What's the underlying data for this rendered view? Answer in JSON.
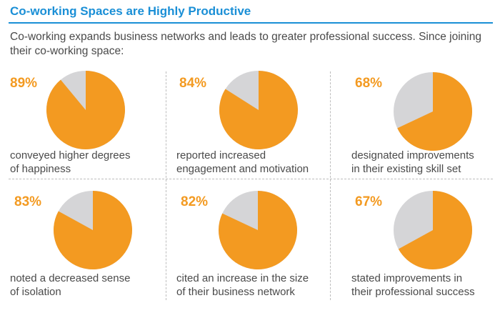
{
  "title": "Co-working Spaces are Highly Productive",
  "subtitle": "Co-working expands business networks and leads to greater professional success. Since joining their co-working space:",
  "colors": {
    "accent": "#f39a21",
    "rest": "#d5d5d7",
    "title": "#1a8fd6",
    "divider": "#bdbdbd"
  },
  "chart_data": [
    {
      "type": "pie",
      "value": 89,
      "label": "89%",
      "caption_lines": [
        "conveyed higher degrees",
        "of happiness"
      ]
    },
    {
      "type": "pie",
      "value": 84,
      "label": "84%",
      "caption_lines": [
        "reported increased",
        "engagement and motivation"
      ]
    },
    {
      "type": "pie",
      "value": 68,
      "label": "68%",
      "caption_lines": [
        "designated improvements",
        "in their existing skill set"
      ]
    },
    {
      "type": "pie",
      "value": 83,
      "label": "83%",
      "caption_lines": [
        "noted a decreased sense",
        "of isolation"
      ]
    },
    {
      "type": "pie",
      "value": 82,
      "label": "82%",
      "caption_lines": [
        "cited an increase in the size",
        "of their business network"
      ]
    },
    {
      "type": "pie",
      "value": 67,
      "label": "67%",
      "caption_lines": [
        "stated improvements in",
        "their professional success"
      ]
    }
  ]
}
